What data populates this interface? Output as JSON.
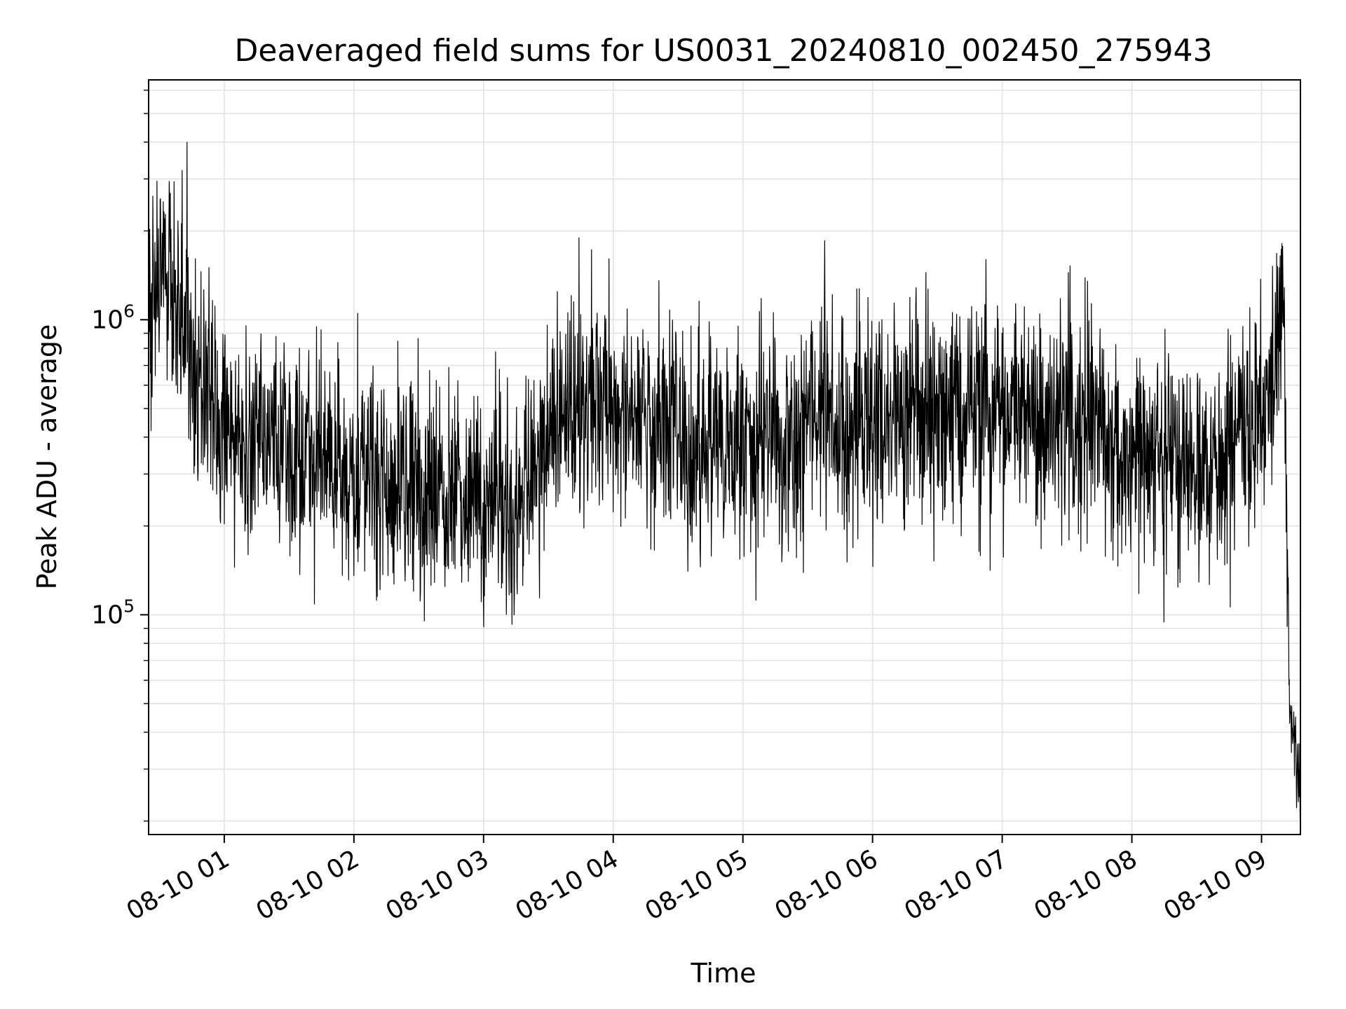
{
  "chart_data": {
    "type": "line",
    "title": "Deaveraged field sums for US0031_20240810_002450_275943",
    "xlabel": "Time",
    "ylabel": "Peak ADU - average",
    "y_scale": "log",
    "ylim": [
      18000,
      6500000
    ],
    "xlim": [
      "2024-08-10 00:25",
      "2024-08-10 09:18"
    ],
    "x_ticks": [
      {
        "t": "2024-08-10 01:00",
        "label": "08-10 01"
      },
      {
        "t": "2024-08-10 02:00",
        "label": "08-10 02"
      },
      {
        "t": "2024-08-10 03:00",
        "label": "08-10 03"
      },
      {
        "t": "2024-08-10 04:00",
        "label": "08-10 04"
      },
      {
        "t": "2024-08-10 05:00",
        "label": "08-10 05"
      },
      {
        "t": "2024-08-10 06:00",
        "label": "08-10 06"
      },
      {
        "t": "2024-08-10 07:00",
        "label": "08-10 07"
      },
      {
        "t": "2024-08-10 08:00",
        "label": "08-10 08"
      },
      {
        "t": "2024-08-10 09:00",
        "label": "08-10 09"
      }
    ],
    "y_major_ticks": [
      {
        "value": 100000,
        "base": "10",
        "exp": "5"
      },
      {
        "value": 1000000,
        "base": "10",
        "exp": "6"
      }
    ],
    "grid": true,
    "line_color": "#000000",
    "series": [
      {
        "x": [
          "2024-08-10 00:25",
          "2024-08-10 00:30",
          "2024-08-10 00:35",
          "2024-08-10 00:40",
          "2024-08-10 00:45",
          "2024-08-10 00:50",
          "2024-08-10 00:55",
          "2024-08-10 01:00",
          "2024-08-10 01:10",
          "2024-08-10 01:20",
          "2024-08-10 01:30",
          "2024-08-10 01:40",
          "2024-08-10 01:50",
          "2024-08-10 02:00",
          "2024-08-10 02:15",
          "2024-08-10 02:30",
          "2024-08-10 02:45",
          "2024-08-10 03:00",
          "2024-08-10 03:15",
          "2024-08-10 03:30",
          "2024-08-10 03:45",
          "2024-08-10 04:00",
          "2024-08-10 04:15",
          "2024-08-10 04:30",
          "2024-08-10 04:45",
          "2024-08-10 05:00",
          "2024-08-10 05:15",
          "2024-08-10 05:30",
          "2024-08-10 05:45",
          "2024-08-10 06:00",
          "2024-08-10 06:15",
          "2024-08-10 06:30",
          "2024-08-10 06:45",
          "2024-08-10 07:00",
          "2024-08-10 07:15",
          "2024-08-10 07:30",
          "2024-08-10 07:45",
          "2024-08-10 08:00",
          "2024-08-10 08:15",
          "2024-08-10 08:30",
          "2024-08-10 08:45",
          "2024-08-10 09:00",
          "2024-08-10 09:05",
          "2024-08-10 09:10",
          "2024-08-10 09:13",
          "2024-08-10 09:18"
        ],
        "y": [
          800000,
          1500000,
          1400000,
          1100000,
          700000,
          600000,
          500000,
          450000,
          400000,
          380000,
          350000,
          330000,
          320000,
          300000,
          280000,
          260000,
          250000,
          220000,
          240000,
          400000,
          500000,
          520000,
          480000,
          420000,
          380000,
          380000,
          400000,
          430000,
          450000,
          470000,
          480000,
          470000,
          460000,
          450000,
          440000,
          430000,
          420000,
          380000,
          330000,
          280000,
          400000,
          500000,
          600000,
          1400000,
          50000,
          25000
        ]
      }
    ]
  }
}
